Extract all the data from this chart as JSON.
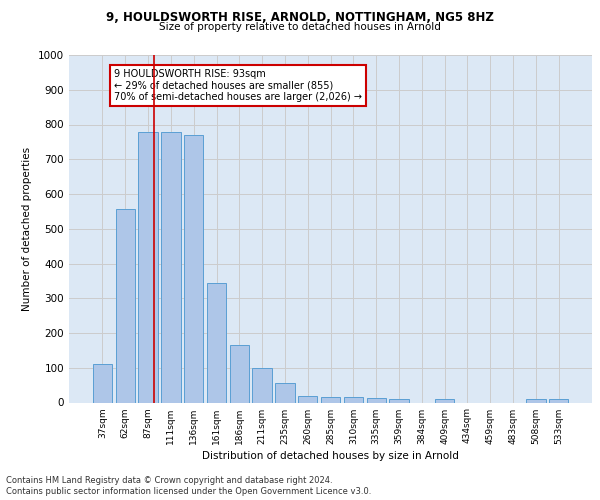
{
  "title1": "9, HOULDSWORTH RISE, ARNOLD, NOTTINGHAM, NG5 8HZ",
  "title2": "Size of property relative to detached houses in Arnold",
  "xlabel": "Distribution of detached houses by size in Arnold",
  "ylabel": "Number of detached properties",
  "categories": [
    "37sqm",
    "62sqm",
    "87sqm",
    "111sqm",
    "136sqm",
    "161sqm",
    "186sqm",
    "211sqm",
    "235sqm",
    "260sqm",
    "285sqm",
    "310sqm",
    "335sqm",
    "359sqm",
    "384sqm",
    "409sqm",
    "434sqm",
    "459sqm",
    "483sqm",
    "508sqm",
    "533sqm"
  ],
  "values": [
    110,
    558,
    778,
    778,
    770,
    345,
    165,
    100,
    55,
    20,
    15,
    15,
    13,
    10,
    0,
    10,
    0,
    0,
    0,
    10,
    10
  ],
  "bar_color": "#aec6e8",
  "bar_edgecolor": "#5a9fd4",
  "vline_x": 2.25,
  "vline_color": "#cc0000",
  "annotation_text": "9 HOULDSWORTH RISE: 93sqm\n← 29% of detached houses are smaller (855)\n70% of semi-detached houses are larger (2,026) →",
  "annotation_box_color": "#ffffff",
  "annotation_edge_color": "#cc0000",
  "ylim": [
    0,
    1000
  ],
  "yticks": [
    0,
    100,
    200,
    300,
    400,
    500,
    600,
    700,
    800,
    900,
    1000
  ],
  "grid_color": "#cccccc",
  "background_color": "#dce8f5",
  "footer1": "Contains HM Land Registry data © Crown copyright and database right 2024.",
  "footer2": "Contains public sector information licensed under the Open Government Licence v3.0."
}
